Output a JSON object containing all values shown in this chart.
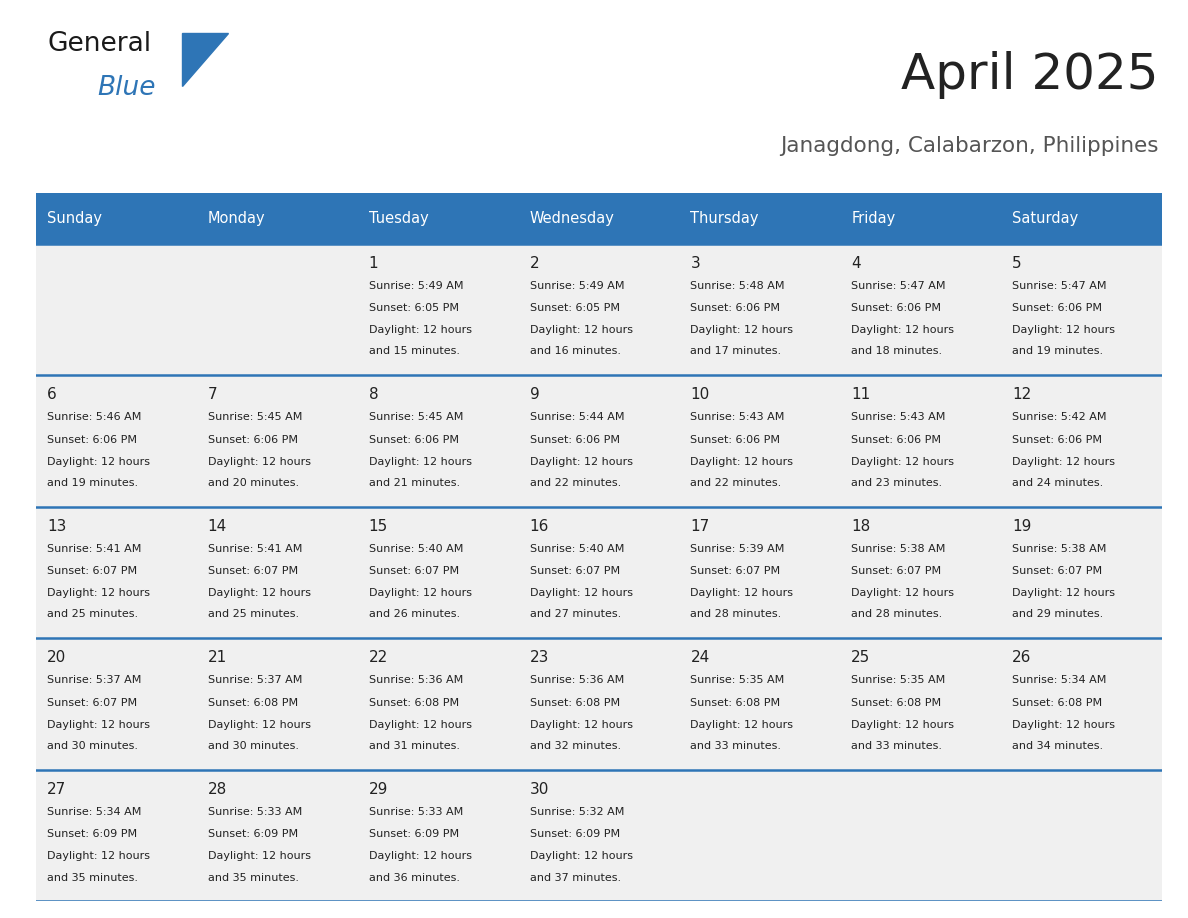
{
  "title": "April 2025",
  "subtitle": "Janagdong, Calabarzon, Philippines",
  "days_of_week": [
    "Sunday",
    "Monday",
    "Tuesday",
    "Wednesday",
    "Thursday",
    "Friday",
    "Saturday"
  ],
  "header_bg": "#2E75B6",
  "header_text": "#FFFFFF",
  "cell_bg": "#F0F0F0",
  "border_color": "#2E75B6",
  "title_color": "#222222",
  "subtitle_color": "#555555",
  "text_color": "#222222",
  "calendar_data": [
    [
      {
        "day": null,
        "sunrise": null,
        "sunset": null,
        "daylight": null
      },
      {
        "day": null,
        "sunrise": null,
        "sunset": null,
        "daylight": null
      },
      {
        "day": 1,
        "sunrise": "5:49 AM",
        "sunset": "6:05 PM",
        "daylight": "12 hours and 15 minutes."
      },
      {
        "day": 2,
        "sunrise": "5:49 AM",
        "sunset": "6:05 PM",
        "daylight": "12 hours and 16 minutes."
      },
      {
        "day": 3,
        "sunrise": "5:48 AM",
        "sunset": "6:06 PM",
        "daylight": "12 hours and 17 minutes."
      },
      {
        "day": 4,
        "sunrise": "5:47 AM",
        "sunset": "6:06 PM",
        "daylight": "12 hours and 18 minutes."
      },
      {
        "day": 5,
        "sunrise": "5:47 AM",
        "sunset": "6:06 PM",
        "daylight": "12 hours and 19 minutes."
      }
    ],
    [
      {
        "day": 6,
        "sunrise": "5:46 AM",
        "sunset": "6:06 PM",
        "daylight": "12 hours and 19 minutes."
      },
      {
        "day": 7,
        "sunrise": "5:45 AM",
        "sunset": "6:06 PM",
        "daylight": "12 hours and 20 minutes."
      },
      {
        "day": 8,
        "sunrise": "5:45 AM",
        "sunset": "6:06 PM",
        "daylight": "12 hours and 21 minutes."
      },
      {
        "day": 9,
        "sunrise": "5:44 AM",
        "sunset": "6:06 PM",
        "daylight": "12 hours and 22 minutes."
      },
      {
        "day": 10,
        "sunrise": "5:43 AM",
        "sunset": "6:06 PM",
        "daylight": "12 hours and 22 minutes."
      },
      {
        "day": 11,
        "sunrise": "5:43 AM",
        "sunset": "6:06 PM",
        "daylight": "12 hours and 23 minutes."
      },
      {
        "day": 12,
        "sunrise": "5:42 AM",
        "sunset": "6:06 PM",
        "daylight": "12 hours and 24 minutes."
      }
    ],
    [
      {
        "day": 13,
        "sunrise": "5:41 AM",
        "sunset": "6:07 PM",
        "daylight": "12 hours and 25 minutes."
      },
      {
        "day": 14,
        "sunrise": "5:41 AM",
        "sunset": "6:07 PM",
        "daylight": "12 hours and 25 minutes."
      },
      {
        "day": 15,
        "sunrise": "5:40 AM",
        "sunset": "6:07 PM",
        "daylight": "12 hours and 26 minutes."
      },
      {
        "day": 16,
        "sunrise": "5:40 AM",
        "sunset": "6:07 PM",
        "daylight": "12 hours and 27 minutes."
      },
      {
        "day": 17,
        "sunrise": "5:39 AM",
        "sunset": "6:07 PM",
        "daylight": "12 hours and 28 minutes."
      },
      {
        "day": 18,
        "sunrise": "5:38 AM",
        "sunset": "6:07 PM",
        "daylight": "12 hours and 28 minutes."
      },
      {
        "day": 19,
        "sunrise": "5:38 AM",
        "sunset": "6:07 PM",
        "daylight": "12 hours and 29 minutes."
      }
    ],
    [
      {
        "day": 20,
        "sunrise": "5:37 AM",
        "sunset": "6:07 PM",
        "daylight": "12 hours and 30 minutes."
      },
      {
        "day": 21,
        "sunrise": "5:37 AM",
        "sunset": "6:08 PM",
        "daylight": "12 hours and 30 minutes."
      },
      {
        "day": 22,
        "sunrise": "5:36 AM",
        "sunset": "6:08 PM",
        "daylight": "12 hours and 31 minutes."
      },
      {
        "day": 23,
        "sunrise": "5:36 AM",
        "sunset": "6:08 PM",
        "daylight": "12 hours and 32 minutes."
      },
      {
        "day": 24,
        "sunrise": "5:35 AM",
        "sunset": "6:08 PM",
        "daylight": "12 hours and 33 minutes."
      },
      {
        "day": 25,
        "sunrise": "5:35 AM",
        "sunset": "6:08 PM",
        "daylight": "12 hours and 33 minutes."
      },
      {
        "day": 26,
        "sunrise": "5:34 AM",
        "sunset": "6:08 PM",
        "daylight": "12 hours and 34 minutes."
      }
    ],
    [
      {
        "day": 27,
        "sunrise": "5:34 AM",
        "sunset": "6:09 PM",
        "daylight": "12 hours and 35 minutes."
      },
      {
        "day": 28,
        "sunrise": "5:33 AM",
        "sunset": "6:09 PM",
        "daylight": "12 hours and 35 minutes."
      },
      {
        "day": 29,
        "sunrise": "5:33 AM",
        "sunset": "6:09 PM",
        "daylight": "12 hours and 36 minutes."
      },
      {
        "day": 30,
        "sunrise": "5:32 AM",
        "sunset": "6:09 PM",
        "daylight": "12 hours and 37 minutes."
      },
      {
        "day": null,
        "sunrise": null,
        "sunset": null,
        "daylight": null
      },
      {
        "day": null,
        "sunrise": null,
        "sunset": null,
        "daylight": null
      },
      {
        "day": null,
        "sunrise": null,
        "sunset": null,
        "daylight": null
      }
    ]
  ]
}
